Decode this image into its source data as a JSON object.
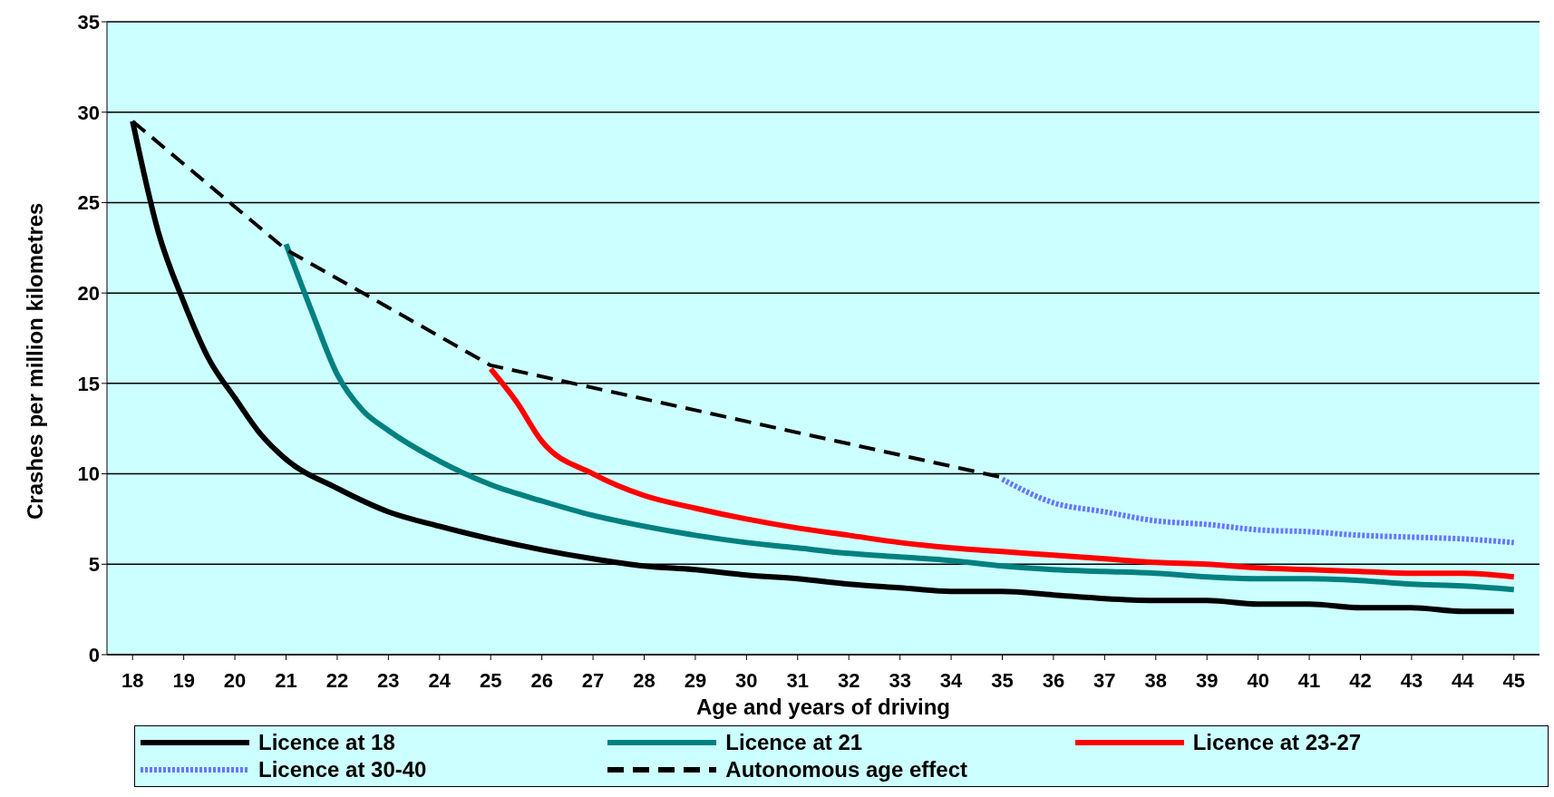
{
  "chart_data": {
    "type": "line",
    "xlabel": "Age and years of driving",
    "ylabel": "Crashes per million kilometres",
    "xlim": [
      17.5,
      45.5
    ],
    "xticks": [
      18,
      19,
      20,
      21,
      22,
      23,
      24,
      25,
      26,
      27,
      28,
      29,
      30,
      31,
      32,
      33,
      34,
      35,
      36,
      37,
      38,
      39,
      40,
      41,
      42,
      43,
      44,
      45
    ],
    "ylim": [
      0,
      35
    ],
    "yticks": [
      0,
      5,
      10,
      15,
      20,
      25,
      30,
      35
    ],
    "grid": "y",
    "legend": "bottom",
    "marker": "none",
    "series": [
      {
        "name": "Licence at 18",
        "color": "#000000",
        "line_style": "solid",
        "x": [
          18,
          18.5,
          19,
          19.5,
          20,
          20.5,
          21,
          22,
          23,
          24,
          25,
          26,
          27,
          28,
          29,
          30,
          31,
          32,
          33,
          34,
          35,
          36,
          37,
          38,
          39,
          40,
          41,
          42,
          43,
          44,
          45
        ],
        "values": [
          29.5,
          23.4,
          19.5,
          16.3,
          14.2,
          12.2,
          10.8,
          9.2,
          7.9,
          7.1,
          6.4,
          5.8,
          5.3,
          4.9,
          4.7,
          4.4,
          4.2,
          3.9,
          3.7,
          3.5,
          3.5,
          3.3,
          3.1,
          3.0,
          3.0,
          2.8,
          2.8,
          2.6,
          2.6,
          2.4,
          2.4
        ]
      },
      {
        "name": "Licence at 21",
        "color": "#008080",
        "line_style": "solid",
        "x": [
          21,
          21.5,
          22,
          22.5,
          23,
          24,
          25,
          26,
          27,
          28,
          29,
          30,
          31,
          32,
          33,
          34,
          35,
          36,
          37,
          38,
          39,
          40,
          41,
          42,
          43,
          44,
          45
        ],
        "values": [
          22.7,
          19,
          15.5,
          13.5,
          12.4,
          10.7,
          9.4,
          8.5,
          7.7,
          7.1,
          6.6,
          6.2,
          5.9,
          5.6,
          5.4,
          5.2,
          4.9,
          4.7,
          4.6,
          4.5,
          4.3,
          4.2,
          4.2,
          4.1,
          3.9,
          3.8,
          3.6
        ]
      },
      {
        "name": "Licence at 23-27",
        "color": "#ff0000",
        "line_style": "solid",
        "x": [
          25,
          25.5,
          26,
          27,
          28,
          29,
          30,
          31,
          32,
          33,
          34,
          35,
          36,
          37,
          38,
          39,
          40,
          41,
          42,
          43,
          44,
          45
        ],
        "values": [
          15.8,
          14,
          11.8,
          10,
          8.8,
          8.1,
          7.5,
          7.0,
          6.6,
          6.2,
          5.9,
          5.7,
          5.5,
          5.3,
          5.1,
          5.0,
          4.8,
          4.7,
          4.6,
          4.5,
          4.5,
          4.3
        ]
      },
      {
        "name": "Licence at 30-40",
        "color": "#6677ff",
        "line_style": "dotted",
        "x": [
          35,
          36,
          37,
          38,
          39,
          40,
          41,
          42,
          43,
          44,
          45
        ],
        "values": [
          9.7,
          8.4,
          7.9,
          7.4,
          7.2,
          6.9,
          6.8,
          6.6,
          6.5,
          6.4,
          6.2
        ]
      },
      {
        "name": "Autonomous age effect",
        "color": "#000000",
        "line_style": "dashed",
        "x": [
          18,
          21,
          25,
          35
        ],
        "values": [
          29.5,
          22.4,
          16,
          9.8
        ]
      }
    ]
  }
}
